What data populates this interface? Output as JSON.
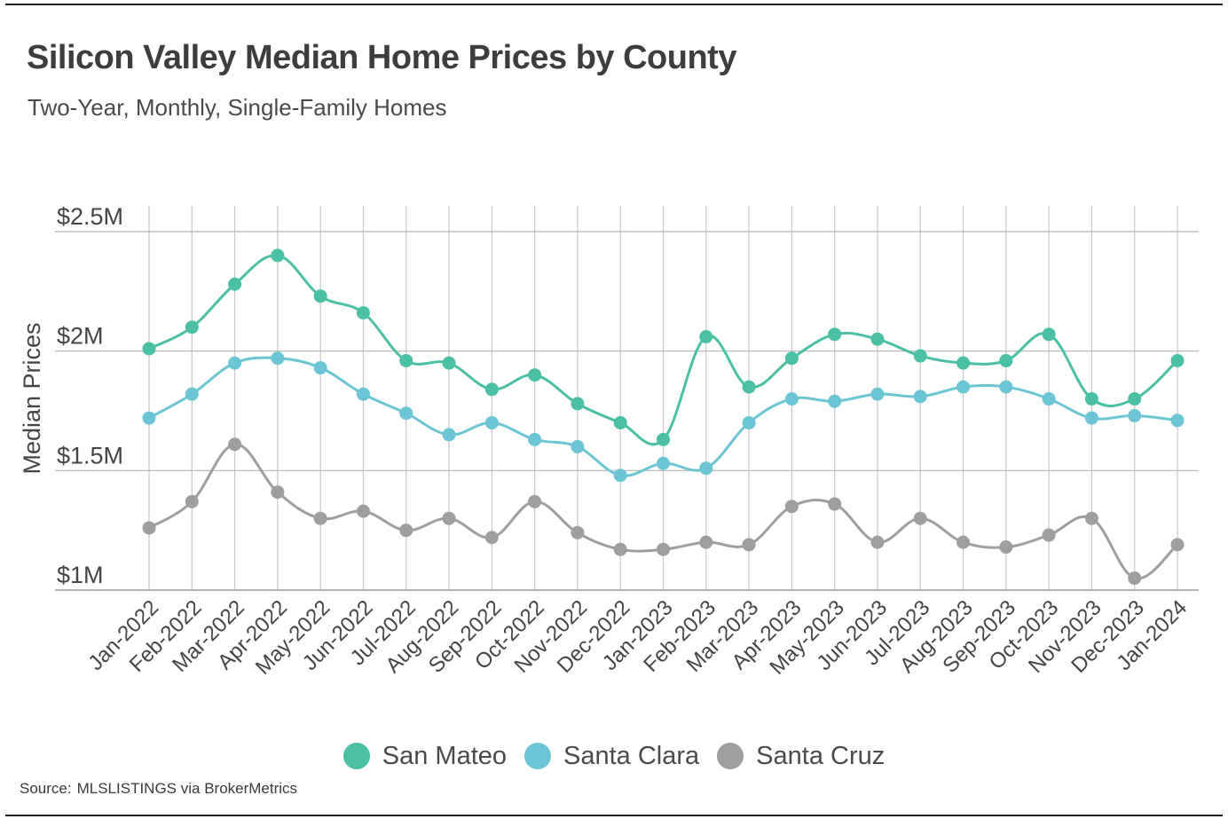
{
  "title": "Silicon Valley Median Home Prices by County",
  "subtitle": "Two-Year, Monthly, Single-Family Homes",
  "source": {
    "prefix": "Source:",
    "text": "MLSLISTINGS via BrokerMetrics"
  },
  "chart_data": {
    "type": "line",
    "title": "Silicon Valley Median Home Prices by County",
    "subtitle": "Two-Year, Monthly, Single-Family Homes",
    "xlabel": "",
    "ylabel": "Median Prices",
    "ylim": [
      1000000,
      2500000
    ],
    "yticks": [
      1000000,
      1500000,
      2000000,
      2500000
    ],
    "ytick_labels": [
      "$1M",
      "$1.5M",
      "$2M",
      "$2.5M"
    ],
    "grid": true,
    "legend_position": "bottom",
    "categories": [
      "Jan-2022",
      "Feb-2022",
      "Mar-2022",
      "Apr-2022",
      "May-2022",
      "Jun-2022",
      "Jul-2022",
      "Aug-2022",
      "Sep-2022",
      "Oct-2022",
      "Nov-2022",
      "Dec-2022",
      "Jan-2023",
      "Feb-2023",
      "Mar-2023",
      "Apr-2023",
      "May-2023",
      "Jun-2023",
      "Jul-2023",
      "Aug-2023",
      "Sep-2023",
      "Oct-2023",
      "Nov-2023",
      "Dec-2023",
      "Jan-2024"
    ],
    "series": [
      {
        "name": "San Mateo",
        "color": "#4abfa4",
        "values": [
          2010000,
          2100000,
          2280000,
          2400000,
          2230000,
          2160000,
          1960000,
          1950000,
          1840000,
          1900000,
          1780000,
          1700000,
          1630000,
          2060000,
          1850000,
          1970000,
          2070000,
          2050000,
          1980000,
          1950000,
          1960000,
          2070000,
          1800000,
          1800000,
          1960000
        ]
      },
      {
        "name": "Santa Clara",
        "color": "#6cc5d4",
        "values": [
          1720000,
          1820000,
          1950000,
          1970000,
          1930000,
          1820000,
          1740000,
          1650000,
          1700000,
          1630000,
          1600000,
          1480000,
          1530000,
          1510000,
          1700000,
          1800000,
          1790000,
          1820000,
          1810000,
          1850000,
          1850000,
          1800000,
          1720000,
          1730000,
          1710000
        ]
      },
      {
        "name": "Santa Cruz",
        "color": "#9e9e9e",
        "values": [
          1260000,
          1370000,
          1610000,
          1410000,
          1300000,
          1330000,
          1250000,
          1300000,
          1220000,
          1370000,
          1240000,
          1170000,
          1170000,
          1200000,
          1190000,
          1350000,
          1360000,
          1200000,
          1300000,
          1200000,
          1180000,
          1230000,
          1300000,
          1050000,
          1190000
        ]
      }
    ]
  }
}
